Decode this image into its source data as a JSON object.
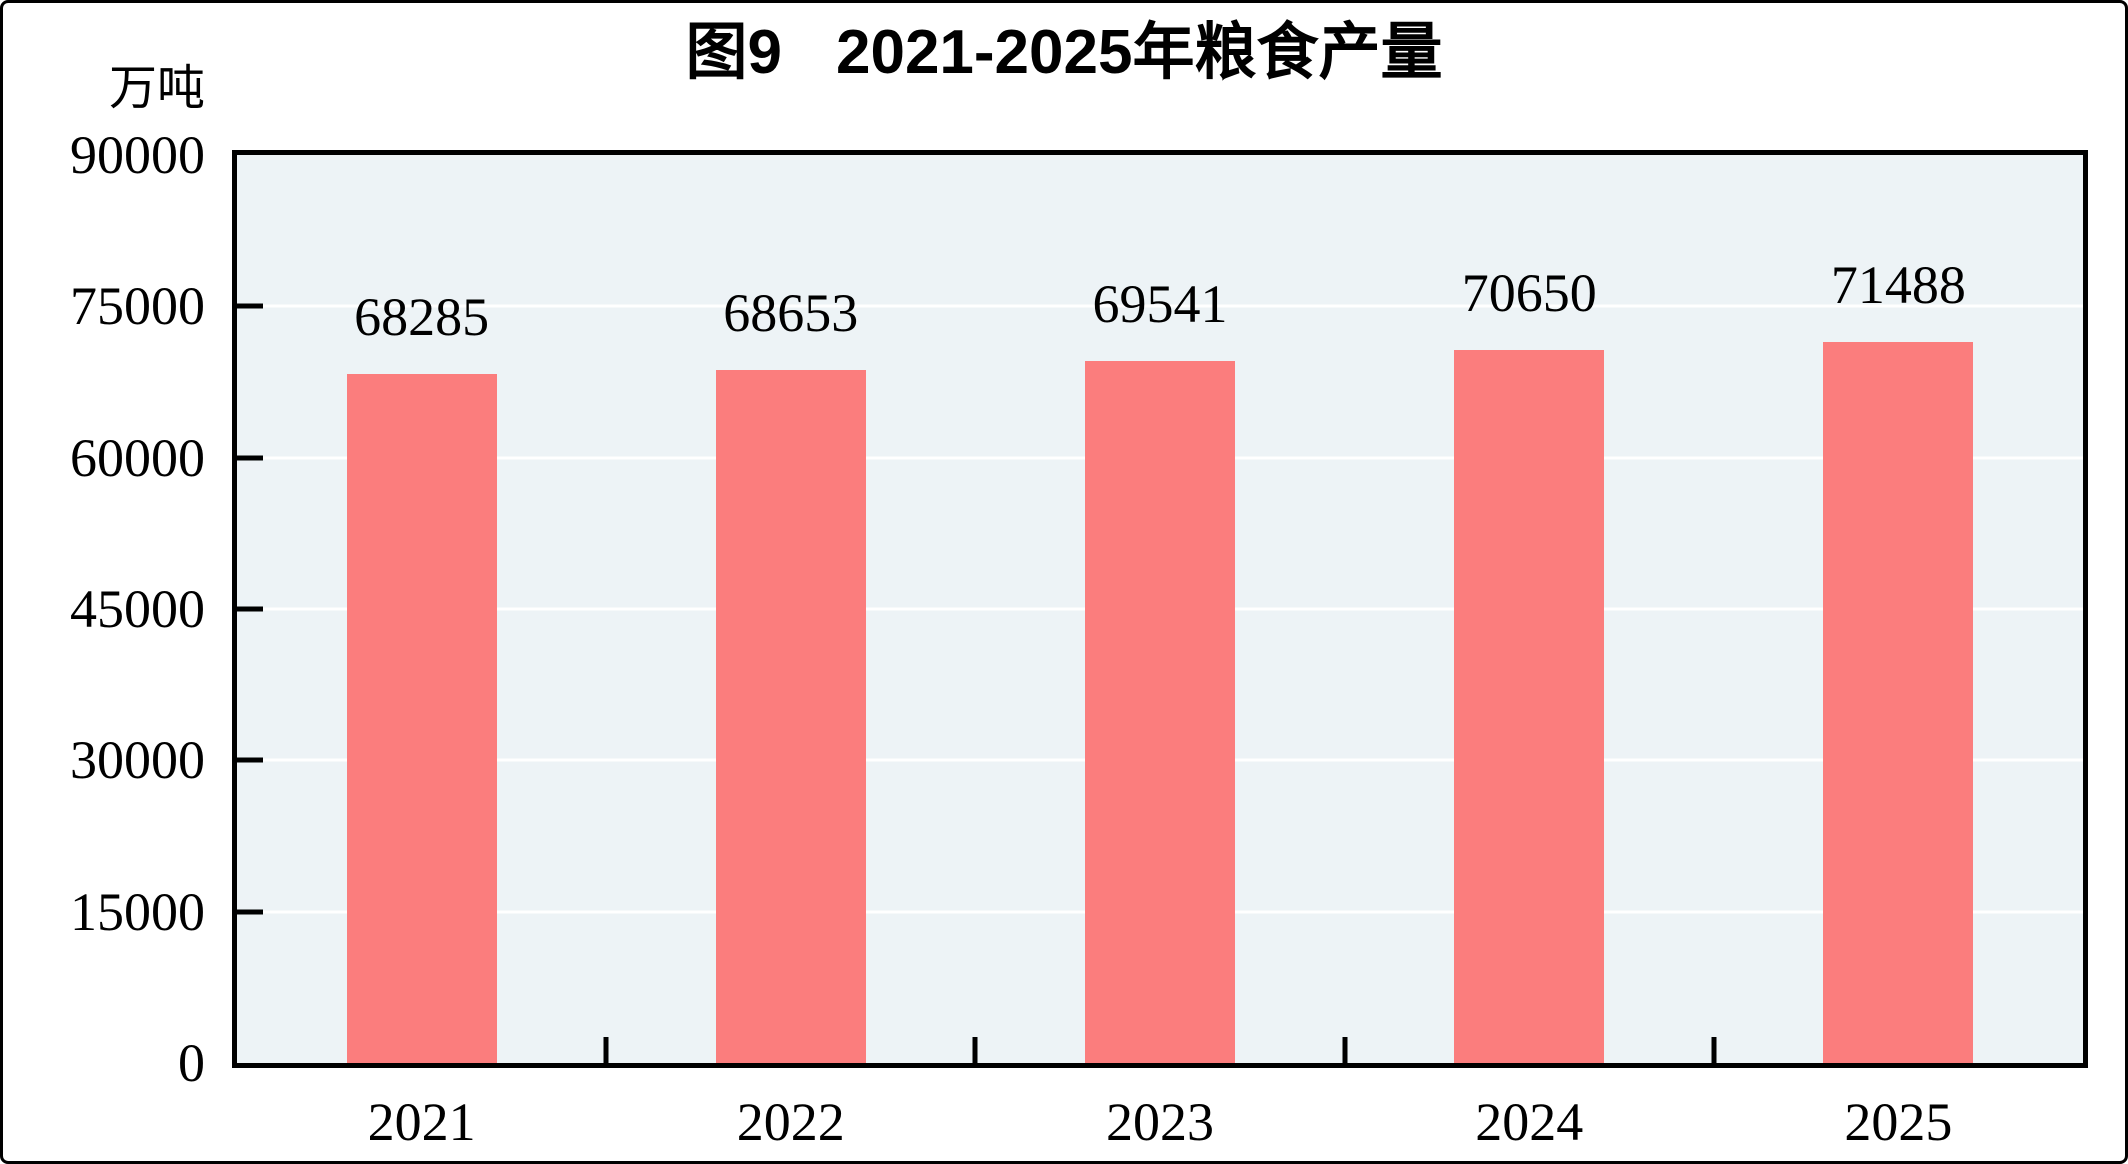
{
  "chart_data": {
    "type": "bar",
    "figure_label": "图9",
    "title": "2021-2025年粮食产量",
    "unit": "万吨",
    "categories": [
      "2021",
      "2022",
      "2023",
      "2024",
      "2025"
    ],
    "values": [
      68285,
      68653,
      69541,
      70650,
      71488
    ],
    "xlabel": "",
    "ylabel": "万吨",
    "ylim": [
      0,
      90000
    ],
    "yticks": [
      0,
      15000,
      30000,
      45000,
      60000,
      75000,
      90000
    ],
    "grid": "horizontal white gridlines at every y tick",
    "legend": "none",
    "colors": {
      "bar_fill": "#FB7D7D",
      "plot_background": "#EDF3F6",
      "gridline": "#FFFFFF",
      "axis_frame": "#000000",
      "text": "#000000",
      "page_background": "#FFFFFF"
    }
  }
}
